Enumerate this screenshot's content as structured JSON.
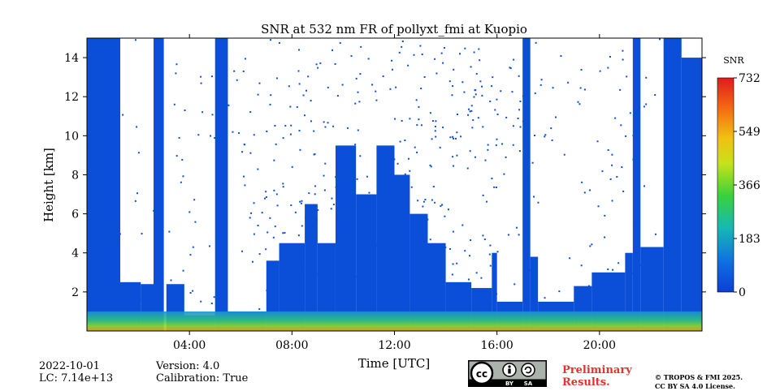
{
  "chart_data": {
    "type": "heatmap",
    "title": "SNR at 532 nm FR of pollyxt_fmi at Kuopio",
    "xlabel": "Time [UTC]",
    "ylabel": "Height [km]",
    "xlim_hours": [
      0,
      24
    ],
    "ylim_km": [
      0,
      15
    ],
    "x_ticks": [
      {
        "hour": 4,
        "label": "04:00"
      },
      {
        "hour": 8,
        "label": "08:00"
      },
      {
        "hour": 12,
        "label": "12:00"
      },
      {
        "hour": 16,
        "label": "16:00"
      },
      {
        "hour": 20,
        "label": "20:00"
      }
    ],
    "y_ticks": [
      {
        "value": 2,
        "label": "2"
      },
      {
        "value": 4,
        "label": "4"
      },
      {
        "value": 6,
        "label": "6"
      },
      {
        "value": 8,
        "label": "8"
      },
      {
        "value": 10,
        "label": "10"
      },
      {
        "value": 12,
        "label": "12"
      },
      {
        "value": 14,
        "label": "14"
      }
    ],
    "colorbar": {
      "label": "SNR",
      "min": 0,
      "max": 732,
      "ticks": [
        {
          "value": 0,
          "label": "0"
        },
        {
          "value": 183,
          "label": "183"
        },
        {
          "value": 366,
          "label": "366"
        },
        {
          "value": 549,
          "label": "549"
        },
        {
          "value": 732,
          "label": "732"
        }
      ],
      "colormap": [
        "#0b3fd6",
        "#0f6fe0",
        "#18b8b4",
        "#3ad13c",
        "#c6e21a",
        "#f2c012",
        "#f26a14",
        "#e31a1c"
      ]
    },
    "grid": false,
    "background_color": "#ffffff",
    "signal_color": "#0b4fd8",
    "full_profile_intervals_hours": [
      [
        0.0,
        1.2
      ],
      [
        5.0,
        5.5
      ],
      [
        17.1,
        17.3
      ],
      [
        21.5,
        21.6
      ]
    ],
    "signal_columns": [
      {
        "start": 0.0,
        "end": 1.3,
        "top_km": 15.0
      },
      {
        "start": 1.3,
        "end": 2.1,
        "top_km": 2.5
      },
      {
        "start": 2.1,
        "end": 2.6,
        "top_km": 2.4
      },
      {
        "start": 2.6,
        "end": 3.0,
        "top_km": 15.0
      },
      {
        "start": 3.1,
        "end": 3.8,
        "top_km": 2.4
      },
      {
        "start": 3.8,
        "end": 5.0,
        "top_km": 0.8
      },
      {
        "start": 5.0,
        "end": 5.5,
        "top_km": 15.0
      },
      {
        "start": 5.5,
        "end": 7.0,
        "top_km": 1.0
      },
      {
        "start": 7.0,
        "end": 7.5,
        "top_km": 3.6
      },
      {
        "start": 7.5,
        "end": 8.5,
        "top_km": 4.5
      },
      {
        "start": 8.5,
        "end": 9.0,
        "top_km": 6.5
      },
      {
        "start": 9.0,
        "end": 9.7,
        "top_km": 4.5
      },
      {
        "start": 9.7,
        "end": 10.5,
        "top_km": 9.5
      },
      {
        "start": 10.5,
        "end": 11.3,
        "top_km": 7.0
      },
      {
        "start": 11.3,
        "end": 12.0,
        "top_km": 9.5
      },
      {
        "start": 12.0,
        "end": 12.6,
        "top_km": 8.0
      },
      {
        "start": 12.6,
        "end": 13.3,
        "top_km": 6.0
      },
      {
        "start": 13.3,
        "end": 14.0,
        "top_km": 4.5
      },
      {
        "start": 14.0,
        "end": 15.0,
        "top_km": 2.5
      },
      {
        "start": 15.0,
        "end": 15.8,
        "top_km": 2.2
      },
      {
        "start": 15.8,
        "end": 16.0,
        "top_km": 4.0
      },
      {
        "start": 16.0,
        "end": 17.0,
        "top_km": 1.5
      },
      {
        "start": 17.0,
        "end": 17.3,
        "top_km": 15.0
      },
      {
        "start": 17.3,
        "end": 17.6,
        "top_km": 3.8
      },
      {
        "start": 17.6,
        "end": 19.0,
        "top_km": 1.5
      },
      {
        "start": 19.0,
        "end": 19.7,
        "top_km": 2.3
      },
      {
        "start": 19.7,
        "end": 21.0,
        "top_km": 3.0
      },
      {
        "start": 21.0,
        "end": 21.3,
        "top_km": 4.0
      },
      {
        "start": 21.3,
        "end": 21.6,
        "top_km": 15.0
      },
      {
        "start": 21.6,
        "end": 22.5,
        "top_km": 4.3
      },
      {
        "start": 22.5,
        "end": 23.2,
        "top_km": 15.0
      },
      {
        "start": 23.2,
        "end": 24.0,
        "top_km": 14.0
      }
    ],
    "low_signal_layer": {
      "description": "strong near-surface return below ~1 km",
      "height_km": [
        0.0,
        1.0
      ],
      "snr_range": [
        200,
        732
      ]
    }
  },
  "footer": {
    "date": "2022-10-01",
    "lc": "LC: 7.14e+13",
    "version": "Version: 4.0",
    "calibration": "Calibration: True",
    "preliminary_line1": "Preliminary",
    "preliminary_line2": "Results.",
    "copyright_line1": "© TROPOS & FMI 2025.",
    "copyright_line2": "CC BY SA 4.0 License.",
    "license_badge": {
      "by": "BY",
      "sa": "SA"
    }
  }
}
